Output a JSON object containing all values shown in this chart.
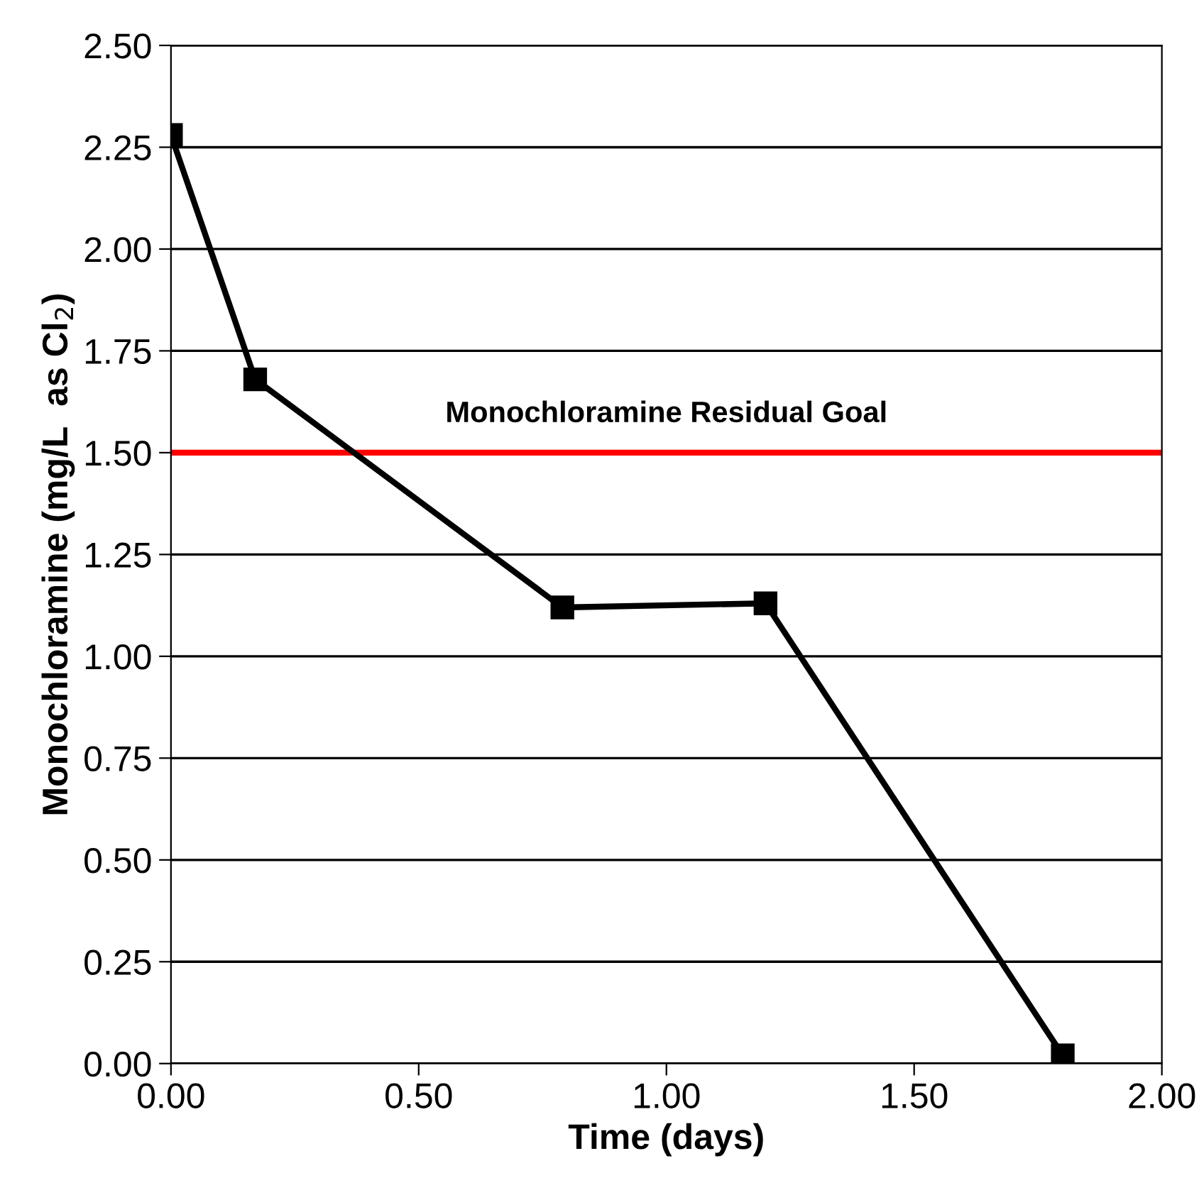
{
  "chart_data": {
    "type": "line",
    "xlabel": "Time (days)",
    "ylabel": "Monochloramine (mg/L  as Cl$_{2}$)",
    "x": [
      0.0,
      0.17,
      0.79,
      1.2,
      1.8
    ],
    "series": [
      {
        "color": "#000000",
        "values": [
          2.28,
          1.68,
          1.12,
          1.13,
          0.02
        ]
      }
    ],
    "marker": "square",
    "line_style": "solid",
    "grid": "y",
    "xlim": [
      0,
      2
    ],
    "xticks": [
      {
        "value": 0,
        "label": "0.00"
      },
      {
        "value": 0.5,
        "label": "0.50"
      },
      {
        "value": 1,
        "label": "1.00"
      },
      {
        "value": 1.5,
        "label": "1.50"
      },
      {
        "value": 2,
        "label": "2.00"
      }
    ],
    "ylim": [
      0,
      2.5
    ],
    "yticks": [
      {
        "value": 0,
        "label": "0.00"
      },
      {
        "value": 0.25,
        "label": "0.25"
      },
      {
        "value": 0.5,
        "label": "0.50"
      },
      {
        "value": 0.75,
        "label": "0.75"
      },
      {
        "value": 1,
        "label": "1.00"
      },
      {
        "value": 1.25,
        "label": "1.25"
      },
      {
        "value": 1.5,
        "label": "1.50"
      },
      {
        "value": 1.75,
        "label": "1.75"
      },
      {
        "value": 2,
        "label": "2.00"
      },
      {
        "value": 2.25,
        "label": "2.25"
      },
      {
        "value": 2.5,
        "label": "2.50"
      }
    ],
    "ref_lines": [
      {
        "axis": "y",
        "value": 1.5,
        "label": "Monochloramine Residual Goal",
        "color": "#ff0000"
      }
    ]
  }
}
